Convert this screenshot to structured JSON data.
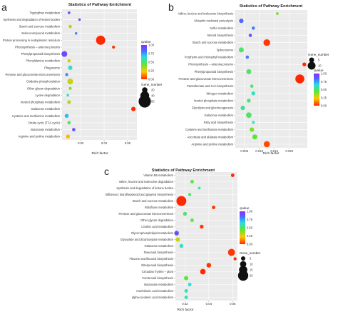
{
  "figure": {
    "panel_labels": [
      "a",
      "b",
      "c"
    ]
  },
  "chart_data": [
    {
      "type": "scatter",
      "panel": "a",
      "title": "Statistics of Pathway Enrichment",
      "xlabel": "Rich factor",
      "ylabel": "",
      "xlim": [
        0.004,
        0.068
      ],
      "xticks": [
        0.02,
        0.04,
        0.06
      ],
      "xtick_labels": [
        "0.02",
        "0.04",
        "0.06"
      ],
      "grid": true,
      "color_legend": {
        "title": "qvalue",
        "ticks": [
          "1.00",
          "0.75",
          "0.50",
          "0.25",
          "0.00"
        ],
        "low_color": "#ff2a00",
        "high_color": "#7b2cff"
      },
      "size_legend": {
        "title": "Gene_number",
        "values": [
          20,
          40,
          60
        ],
        "labels": [
          "20",
          "40",
          "60"
        ]
      },
      "categories": [
        "Tryptophan metabolism",
        "Synthesis and degradation of ketone bodies",
        "Starch and sucrose metabolism",
        "Selenocompound metabolism",
        "Protein processing in endoplasmic reticulum",
        "Photosynthesis – antenna proteins",
        "Phenylpropanoid biosynthesis",
        "Phenylalanine metabolism",
        "Phagosome",
        "Pentose and glucuronate interconversions",
        "Oxidative phosphorylation",
        "Other glycan degradation",
        "Lysine degradation",
        "Inositol phosphate metabolism",
        "Galactose metabolism",
        "Cysteine and methionine metabolism",
        "Citrate cycle (TCA cycle)",
        "Butanoate metabolism",
        "Arginine and proline metabolism"
      ],
      "x": [
        0.01,
        0.019,
        0.011,
        0.016,
        0.037,
        0.048,
        0.006,
        0.01,
        0.011,
        0.008,
        0.011,
        0.011,
        0.009,
        0.01,
        0.065,
        0.008,
        0.01,
        0.014,
        0.009
      ],
      "gene_number": [
        4,
        2,
        8,
        3,
        42,
        6,
        22,
        8,
        14,
        6,
        22,
        6,
        4,
        10,
        14,
        12,
        8,
        8,
        12
      ],
      "qvalue": [
        0.88,
        0.95,
        0.3,
        0.8,
        0.0,
        0.02,
        0.92,
        0.28,
        0.62,
        0.8,
        0.3,
        0.4,
        0.6,
        0.32,
        0.0,
        0.7,
        0.5,
        0.9,
        0.2
      ]
    },
    {
      "type": "scatter",
      "panel": "b",
      "title": "Statistics of Pathway Enrichment",
      "xlabel": "Rich factor",
      "ylabel": "",
      "xlim": [
        0.002,
        0.026
      ],
      "xticks": [
        0.005,
        0.01,
        0.015,
        0.02
      ],
      "xtick_labels": [
        "0.005",
        "0.010",
        "0.015",
        "0.020"
      ],
      "grid": true,
      "color_legend": {
        "title": "qvalue",
        "ticks": [
          "1.00",
          "0.75",
          "0.50",
          "0.25",
          "0.00"
        ],
        "low_color": "#ff2a00",
        "high_color": "#7b2cff"
      },
      "size_legend": {
        "title": "Gene_number",
        "values": [
          5,
          10
        ],
        "labels": [
          "5",
          "10"
        ]
      },
      "categories": [
        "Valine, leucine and isoleucine biosynthesis",
        "Ubiquitin mediated proteolysis",
        "Sulfur metabolism",
        "Steroid biosynthesis",
        "Starch and sucrose metabolism",
        "Spliceosome",
        "Porphyrin and chlorophyll metabolism",
        "Photosynthesis – antenna proteins",
        "Phenylpropanoid biosynthesis",
        "Pentose and glucuronate interconversions",
        "Pantothenate and CoA biosynthesis",
        "Nitrogen metabolism",
        "Inositol phosphate metabolism",
        "Glycolysis and gluconeogenesis",
        "Galactose metabolism",
        "Fatty acid biosynthesis",
        "Cysteine and methionine metabolism",
        "Ascorbate and aldarate metabolism",
        "Arginine and proline metabolism"
      ],
      "x": [
        0.016,
        0.004,
        0.008,
        0.007,
        0.0125,
        0.004,
        0.006,
        0.025,
        0.0065,
        0.0235,
        0.0075,
        0.008,
        0.0065,
        0.0045,
        0.0065,
        0.008,
        0.0075,
        0.0085,
        0.0125
      ],
      "gene_number": [
        1,
        4,
        2,
        2,
        8,
        5,
        2,
        3,
        5,
        12,
        2,
        3,
        3,
        4,
        6,
        1,
        4,
        5,
        7
      ],
      "qvalue": [
        0.4,
        0.85,
        0.8,
        0.9,
        0.02,
        0.5,
        0.8,
        0.0,
        0.5,
        0.0,
        0.5,
        0.6,
        0.5,
        0.55,
        0.5,
        0.6,
        0.4,
        0.45,
        0.05
      ]
    },
    {
      "type": "scatter",
      "panel": "c",
      "title": "Statistics of Pathway Enrichment",
      "xlabel": "Rich factor",
      "ylabel": "",
      "xlim": [
        0.012,
        0.064
      ],
      "xticks": [
        0.02,
        0.04,
        0.06
      ],
      "xtick_labels": [
        "0.02",
        "0.04",
        "0.06"
      ],
      "grid": true,
      "color_legend": {
        "title": "qvalue",
        "ticks": [
          "1.00",
          "0.75",
          "0.50",
          "0.25",
          "0.00"
        ],
        "low_color": "#ff2a00",
        "high_color": "#7b2cff"
      },
      "size_legend": {
        "title": "Gene_number",
        "values": [
          5,
          10,
          15,
          20
        ],
        "labels": [
          "5",
          "10",
          "15",
          "20"
        ]
      },
      "categories": [
        "Vitamin B6 metabolism",
        "Valine, leucine and isoleucine degradation",
        "Synthesis and degradation of ketone bodies",
        "Stilbenoid, diarylheptanoid and gingerol biosynthesis",
        "Starch and sucrose metabolism",
        "Riboflavin metabolism",
        "Pentose and glucuronate interconversions",
        "Other glycan degradation",
        "Linoleic acid metabolism",
        "Glycerophospholipid metabolism",
        "Glyoxylate and dicarboxylate metabolism",
        "Galactose metabolism",
        "Flavonoid biosynthesis",
        "Flavone and flavonol biosynthesis",
        "Diterpenoid biosynthesis",
        "Circadian rhythm – plant",
        "Carotenoid biosynthesis",
        "Butanoate metabolism",
        "Arachidonic acid metabolism",
        "alpha-Linolenic acid metabolism"
      ],
      "x": [
        0.06,
        0.026,
        0.032,
        0.024,
        0.017,
        0.044,
        0.02,
        0.026,
        0.034,
        0.013,
        0.014,
        0.017,
        0.059,
        0.062,
        0.04,
        0.035,
        0.021,
        0.024,
        0.021,
        0.021
      ],
      "gene_number": [
        3,
        3,
        1,
        2,
        19,
        3,
        4,
        3,
        4,
        6,
        5,
        4,
        12,
        2,
        6,
        8,
        5,
        3,
        3,
        3
      ],
      "qvalue": [
        0.0,
        0.45,
        0.6,
        0.5,
        0.0,
        0.02,
        0.5,
        0.45,
        0.02,
        0.9,
        0.3,
        0.6,
        0.02,
        0.0,
        0.02,
        0.0,
        0.45,
        0.65,
        0.6,
        0.6
      ]
    }
  ]
}
